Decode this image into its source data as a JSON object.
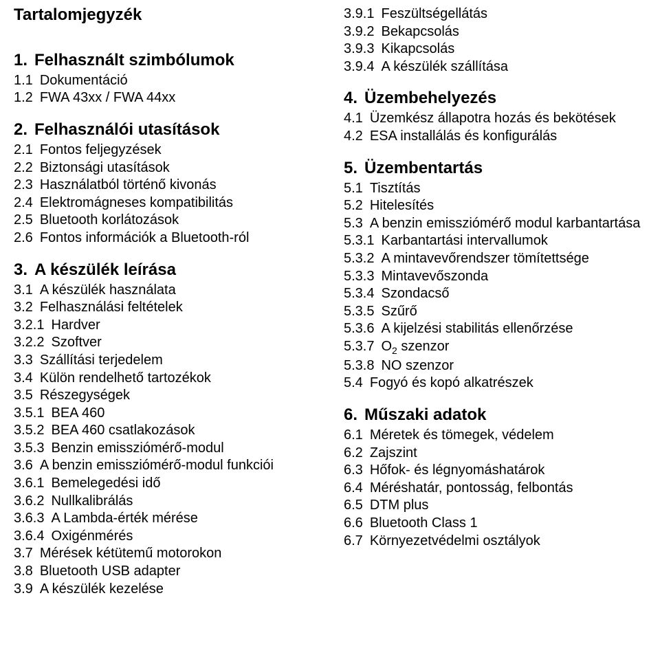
{
  "page_title": "Tartalomjegyzék",
  "left": [
    {
      "type": "heading",
      "num": "1.",
      "label": "Felhasznált szimbólumok"
    },
    {
      "type": "entry",
      "num": "1.1",
      "label": "Dokumentáció"
    },
    {
      "type": "entry",
      "num": "1.2",
      "label": "FWA 43xx / FWA 44xx"
    },
    {
      "type": "heading",
      "num": "2.",
      "label": "Felhasználói utasítások"
    },
    {
      "type": "entry",
      "num": "2.1",
      "label": "Fontos feljegyzések"
    },
    {
      "type": "entry",
      "num": "2.2",
      "label": "Biztonsági utasítások"
    },
    {
      "type": "entry",
      "num": "2.3",
      "label": "Használatból történő kivonás"
    },
    {
      "type": "entry",
      "num": "2.4",
      "label": "Elektromágneses kompatibilitás"
    },
    {
      "type": "entry",
      "num": "2.5",
      "label": "Bluetooth korlátozások"
    },
    {
      "type": "entry",
      "num": "2.6",
      "label": "Fontos információk a Bluetooth-ról"
    },
    {
      "type": "heading",
      "num": "3.",
      "label": "A készülék leírása"
    },
    {
      "type": "entry",
      "num": "3.1",
      "label": "A készülék használata"
    },
    {
      "type": "entry",
      "num": "3.2",
      "label": "Felhasználási feltételek"
    },
    {
      "type": "entry",
      "num": "3.2.1",
      "label": "Hardver"
    },
    {
      "type": "entry",
      "num": "3.2.2",
      "label": "Szoftver"
    },
    {
      "type": "entry",
      "num": "3.3",
      "label": "Szállítási terjedelem"
    },
    {
      "type": "entry",
      "num": "3.4",
      "label": "Külön rendelhető tartozékok"
    },
    {
      "type": "entry",
      "num": "3.5",
      "label": "Részegységek"
    },
    {
      "type": "entry",
      "num": "3.5.1",
      "label": "BEA 460"
    },
    {
      "type": "entry",
      "num": "3.5.2",
      "label": "BEA 460 csatlakozások"
    },
    {
      "type": "entry",
      "num": "3.5.3",
      "label": "Benzin emissziómérő-modul"
    },
    {
      "type": "entry",
      "num": "3.6",
      "label": "A benzin emissziómérő-modul funkciói"
    },
    {
      "type": "entry",
      "num": "3.6.1",
      "label": "Bemelegedési idő"
    },
    {
      "type": "entry",
      "num": "3.6.2",
      "label": "Nullkalibrálás"
    },
    {
      "type": "entry",
      "num": "3.6.3",
      "label": "A Lambda-érték mérése"
    },
    {
      "type": "entry",
      "num": "3.6.4",
      "label": "Oxigénmérés"
    },
    {
      "type": "entry",
      "num": "3.7",
      "label": "Mérések kétütemű motorokon"
    },
    {
      "type": "entry",
      "num": "3.8",
      "label": "Bluetooth USB adapter"
    },
    {
      "type": "entry",
      "num": "3.9",
      "label": "A készülék kezelése"
    }
  ],
  "right": [
    {
      "type": "entry",
      "num": "3.9.1",
      "label": "Feszültségellátás"
    },
    {
      "type": "entry",
      "num": "3.9.2",
      "label": "Bekapcsolás"
    },
    {
      "type": "entry",
      "num": "3.9.3",
      "label": "Kikapcsolás"
    },
    {
      "type": "entry",
      "num": "3.9.4",
      "label": "A készülék szállítása"
    },
    {
      "type": "heading",
      "num": "4.",
      "label": "Üzembehelyezés"
    },
    {
      "type": "entry",
      "num": "4.1",
      "label": "Üzemkész állapotra hozás és bekötések"
    },
    {
      "type": "entry",
      "num": "4.2",
      "label": "ESA installálás és konfigurálás"
    },
    {
      "type": "heading",
      "num": "5.",
      "label": "Üzembentartás"
    },
    {
      "type": "entry",
      "num": "5.1",
      "label": "Tisztítás"
    },
    {
      "type": "entry",
      "num": "5.2",
      "label": "Hitelesítés"
    },
    {
      "type": "entry",
      "num": "5.3",
      "label": "A benzin emissziómérő modul karbantartása",
      "indent": true
    },
    {
      "type": "entry",
      "num": "5.3.1",
      "label": "Karbantartási intervallumok"
    },
    {
      "type": "entry",
      "num": "5.3.2",
      "label": "A mintavevőrendszer tömítettsége"
    },
    {
      "type": "entry",
      "num": "5.3.3",
      "label": "Mintavevőszonda"
    },
    {
      "type": "entry",
      "num": "5.3.4",
      "label": "Szondacső"
    },
    {
      "type": "entry",
      "num": "5.3.5",
      "label": "Szűrő"
    },
    {
      "type": "entry",
      "num": "5.3.6",
      "label": "A kijelzési stabilitás ellenőrzése"
    },
    {
      "type": "entry",
      "num": "5.3.7",
      "label": "O₂ szenzor",
      "o2": true
    },
    {
      "type": "entry",
      "num": "5.3.8",
      "label": "NO szenzor"
    },
    {
      "type": "entry",
      "num": "5.4",
      "label": "Fogyó és kopó alkatrészek"
    },
    {
      "type": "heading",
      "num": "6.",
      "label": "Műszaki adatok"
    },
    {
      "type": "entry",
      "num": "6.1",
      "label": "Méretek és tömegek, védelem"
    },
    {
      "type": "entry",
      "num": "6.2",
      "label": "Zajszint"
    },
    {
      "type": "entry",
      "num": "6.3",
      "label": "Hőfok- és légnyomáshatárok"
    },
    {
      "type": "entry",
      "num": "6.4",
      "label": "Méréshatár, pontosság, felbontás"
    },
    {
      "type": "entry",
      "num": "6.5",
      "label": "DTM plus"
    },
    {
      "type": "entry",
      "num": "6.6",
      "label": "Bluetooth Class 1"
    },
    {
      "type": "entry",
      "num": "6.7",
      "label": "Környezetvédelmi osztályok"
    }
  ],
  "colors": {
    "text": "#000000",
    "background": "#ffffff"
  },
  "fontsizes": {
    "title": 24,
    "heading": 24,
    "entry": 20
  }
}
